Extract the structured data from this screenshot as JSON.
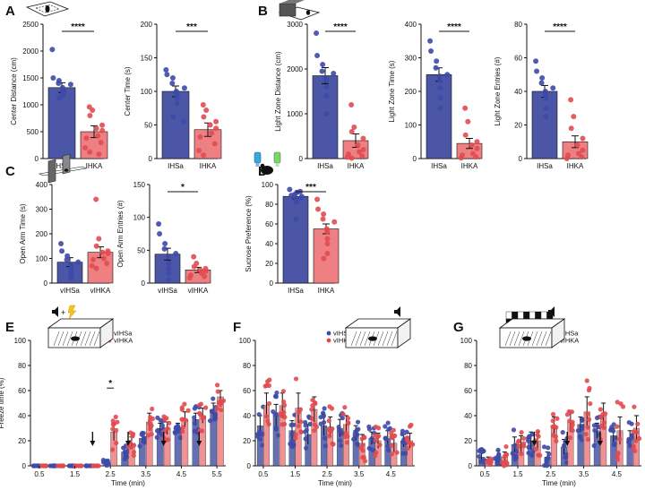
{
  "colors": {
    "blue": "#4b56a6",
    "red": "#ee8083",
    "blueDot": "#3d4aa8",
    "redDot": "#e04b50",
    "axis": "#111111"
  },
  "chart_data": [
    {
      "id": "A1",
      "panel_label": "A",
      "type": "bar",
      "icon": "open-field-icon",
      "ylabel": "Center Distance (cm)",
      "ylim": [
        0,
        2500
      ],
      "yticks": [
        0,
        500,
        1000,
        1500,
        2000,
        2500
      ],
      "categories": [
        "IHSa",
        "IHKA"
      ],
      "values": [
        1320,
        500
      ],
      "sem": [
        90,
        110
      ],
      "sig": "****",
      "points": [
        [
          2030,
          1500,
          1450,
          1400,
          1380,
          1320,
          1280,
          1250,
          1220,
          1180,
          1120
        ],
        [
          960,
          900,
          800,
          620,
          560,
          520,
          420,
          380,
          300,
          200,
          120,
          80
        ]
      ]
    },
    {
      "id": "A2",
      "type": "bar",
      "ylabel": "Center Time (s)",
      "ylim": [
        0,
        200
      ],
      "yticks": [
        0,
        50,
        100,
        150,
        200
      ],
      "categories": [
        "IHSa",
        "IHKA"
      ],
      "values": [
        100,
        43
      ],
      "sem": [
        8,
        10
      ],
      "sig": "***",
      "points": [
        [
          132,
          125,
          120,
          112,
          105,
          100,
          98,
          95,
          90,
          82,
          62,
          55
        ],
        [
          80,
          72,
          62,
          55,
          50,
          45,
          38,
          32,
          22,
          12,
          5
        ]
      ]
    },
    {
      "id": "B1",
      "panel_label": "B",
      "type": "bar",
      "icon": "light-dark-box-icon",
      "ylabel": "Light Zone Distance (cm)",
      "ylim": [
        0,
        3000
      ],
      "yticks": [
        0,
        1000,
        2000,
        3000
      ],
      "categories": [
        "IHSa",
        "IHKA"
      ],
      "values": [
        1850,
        400
      ],
      "sem": [
        180,
        150
      ],
      "sig": "****",
      "points": [
        [
          2800,
          2300,
          2100,
          1950,
          1900,
          1800,
          1750,
          1600,
          1400,
          1000
        ],
        [
          1200,
          700,
          600,
          450,
          300,
          200,
          150,
          100,
          60,
          30,
          10
        ]
      ]
    },
    {
      "id": "B2",
      "type": "bar",
      "ylabel": "Light Zone Time (s)",
      "ylim": [
        0,
        400
      ],
      "yticks": [
        0,
        100,
        200,
        300,
        400
      ],
      "categories": [
        "IHSa",
        "IHKA"
      ],
      "values": [
        250,
        45
      ],
      "sem": [
        20,
        15
      ],
      "sig": "****",
      "points": [
        [
          350,
          320,
          290,
          270,
          250,
          245,
          230,
          210,
          180,
          150
        ],
        [
          150,
          110,
          70,
          50,
          40,
          30,
          15,
          10,
          5,
          2
        ]
      ]
    },
    {
      "id": "B3",
      "type": "bar",
      "ylabel": "Light Zone Entries (#)",
      "ylim": [
        0,
        80
      ],
      "yticks": [
        0,
        20,
        40,
        60,
        80
      ],
      "categories": [
        "IHSa",
        "IHKA"
      ],
      "values": [
        40,
        10
      ],
      "sem": [
        3.5,
        3.5
      ],
      "sig": "****",
      "points": [
        [
          58,
          52,
          48,
          45,
          42,
          40,
          38,
          36,
          30,
          25
        ],
        [
          35,
          25,
          18,
          12,
          8,
          5,
          3,
          2,
          1,
          0
        ]
      ]
    },
    {
      "id": "C1",
      "panel_label": "C",
      "type": "bar",
      "icon": "elevated-plus-maze-icon",
      "ylabel": "Open Arm Time (s)",
      "ylim": [
        0,
        400
      ],
      "yticks": [
        0,
        100,
        200,
        300,
        400
      ],
      "categories": [
        "vIHSa",
        "vIHKA"
      ],
      "values": [
        85,
        125
      ],
      "sem": [
        18,
        22
      ],
      "sig": "",
      "points": [
        [
          160,
          130,
          110,
          95,
          85,
          75,
          60,
          45,
          30,
          20
        ],
        [
          340,
          180,
          150,
          130,
          125,
          120,
          100,
          95,
          80,
          70,
          60
        ]
      ]
    },
    {
      "id": "C2",
      "type": "bar",
      "ylabel": "Open Arm Entries (#)",
      "ylim": [
        0,
        150
      ],
      "yticks": [
        0,
        50,
        100,
        150
      ],
      "categories": [
        "vIHSa",
        "vIHKA"
      ],
      "values": [
        44,
        20
      ],
      "sem": [
        9,
        4
      ],
      "sig": "*",
      "points": [
        [
          90,
          75,
          60,
          52,
          45,
          40,
          30,
          22,
          15,
          5
        ],
        [
          40,
          30,
          25,
          22,
          20,
          18,
          15,
          12,
          10,
          8
        ]
      ]
    },
    {
      "id": "D",
      "panel_label": "D",
      "type": "bar",
      "icon": "sucrose-bottles-mouse-icon",
      "ylabel": "Sucrose Preference (%)",
      "ylim": [
        0,
        100
      ],
      "yticks": [
        0,
        20,
        40,
        60,
        80,
        100
      ],
      "categories": [
        "IHSa",
        "IHKA"
      ],
      "values": [
        88,
        55
      ],
      "sem": [
        2.5,
        5
      ],
      "sig": "***",
      "points": [
        [
          95,
          93,
          92,
          90,
          89,
          88,
          86,
          85,
          82,
          65
        ],
        [
          85,
          75,
          70,
          65,
          62,
          55,
          52,
          45,
          40,
          30,
          25
        ]
      ]
    },
    {
      "id": "E",
      "panel_label": "E",
      "type": "bar",
      "icon": "tone-shock-chamber-icon",
      "series_names": [
        "vIHSa",
        "vIHKA"
      ],
      "ylabel": "Freeze time (%)",
      "xlabel": "Time (min)",
      "ylim": [
        0,
        100
      ],
      "yticks": [
        0,
        20,
        40,
        60,
        80,
        100
      ],
      "categories": [
        "0.5",
        "1",
        "1.5",
        "2",
        "2.5",
        "3",
        "3.5",
        "4",
        "4.5",
        "5",
        "5.5"
      ],
      "xticks": [
        "0.5",
        "1.5",
        "2.5",
        "3.5",
        "4.5",
        "5.5"
      ],
      "series": [
        {
          "name": "vIHSa",
          "values": [
            0,
            0,
            0,
            0,
            3,
            11,
            22,
            30,
            30,
            37,
            45
          ],
          "sem": [
            0,
            0,
            0,
            0,
            1.5,
            4,
            4,
            4,
            4,
            5,
            5
          ]
        },
        {
          "name": "vIHKA",
          "values": [
            0,
            0,
            0,
            0,
            27,
            18,
            35,
            30,
            37,
            40,
            55
          ],
          "sem": [
            0,
            0,
            0,
            0,
            7,
            5,
            7,
            5,
            6,
            6,
            5
          ]
        }
      ],
      "arrows_after": [
        "2",
        "3",
        "4",
        "5"
      ],
      "sig_at": "2.5",
      "sig": "*"
    },
    {
      "id": "F",
      "panel_label": "F",
      "type": "bar",
      "icon": "tone-chamber-icon",
      "series_names": [
        "vIHSa",
        "vIHKA"
      ],
      "ylabel": "",
      "xlabel": "Time (min)",
      "ylim": [
        0,
        100
      ],
      "yticks": [
        0,
        20,
        40,
        60,
        80,
        100
      ],
      "categories": [
        "0.5",
        "1",
        "1.5",
        "2",
        "2.5",
        "3",
        "3.5",
        "4",
        "4.5",
        "5"
      ],
      "xticks": [
        "0.5",
        "1.5",
        "2.5",
        "3.5",
        "4.5"
      ],
      "series": [
        {
          "name": "vIHSa",
          "values": [
            32,
            40,
            28,
            25,
            32,
            30,
            26,
            22,
            22,
            20
          ],
          "sem": [
            8,
            9,
            8,
            8,
            8,
            7,
            6,
            5,
            6,
            5
          ]
        },
        {
          "name": "vIHKA",
          "values": [
            48,
            48,
            46,
            45,
            31,
            33,
            18,
            20,
            18,
            20
          ],
          "sem": [
            10,
            10,
            12,
            10,
            8,
            7,
            7,
            6,
            7,
            6
          ]
        }
      ],
      "arrows_after": [],
      "sig": ""
    },
    {
      "id": "G",
      "panel_label": "G",
      "type": "bar",
      "icon": "novel-context-tone-icon",
      "series_names": [
        "vIHSa",
        "vIHKA"
      ],
      "ylabel": "",
      "xlabel": "Time (min)",
      "ylim": [
        0,
        100
      ],
      "yticks": [
        0,
        20,
        40,
        60,
        80,
        100
      ],
      "categories": [
        "0.5",
        "1",
        "1.5",
        "2",
        "2.5",
        "3",
        "3.5",
        "4",
        "4.5",
        "5"
      ],
      "xticks": [
        "0.5",
        "1.5",
        "2.5",
        "3.5",
        "4.5"
      ],
      "series": [
        {
          "name": "vIHSa",
          "values": [
            7,
            8,
            17,
            20,
            7,
            15,
            33,
            28,
            24,
            22
          ],
          "sem": [
            3,
            4,
            6,
            7,
            4,
            6,
            6,
            6,
            6,
            6
          ]
        },
        {
          "name": "vIHKA",
          "values": [
            5,
            7,
            17,
            20,
            31,
            35,
            43,
            40,
            28,
            30
          ],
          "sem": [
            2,
            4,
            7,
            7,
            8,
            8,
            12,
            10,
            11,
            10
          ]
        }
      ],
      "arrows_after": [
        "2",
        "3",
        "4"
      ],
      "sig": ""
    }
  ]
}
